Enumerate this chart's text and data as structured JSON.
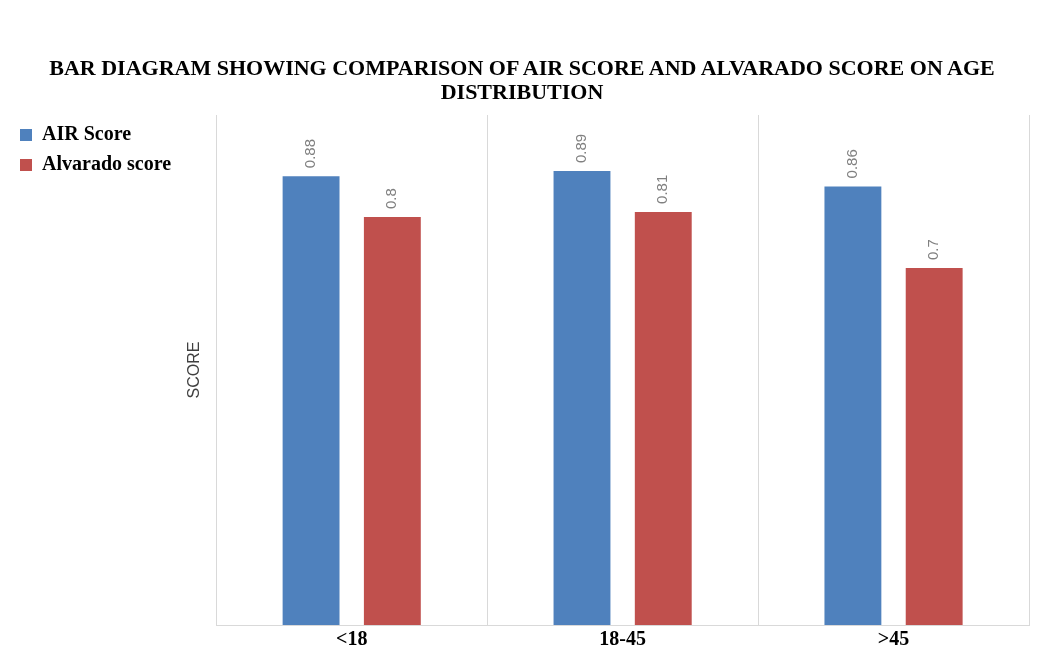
{
  "chart_data": {
    "type": "bar",
    "title": "BAR DIAGRAM SHOWING COMPARISON OF AIR SCORE AND ALVARADO SCORE ON AGE DISTRIBUTION",
    "ylabel": "SCORE",
    "categories": [
      "<18",
      "18-45",
      ">45"
    ],
    "series": [
      {
        "name": "AIR Score",
        "color": "#4f81bd",
        "values": [
          0.88,
          0.89,
          0.86
        ]
      },
      {
        "name": "Alvarado score",
        "color": "#c0504d",
        "values": [
          0.8,
          0.81,
          0.7
        ]
      }
    ],
    "data_labels": true,
    "grid": "x",
    "legend": "left"
  }
}
